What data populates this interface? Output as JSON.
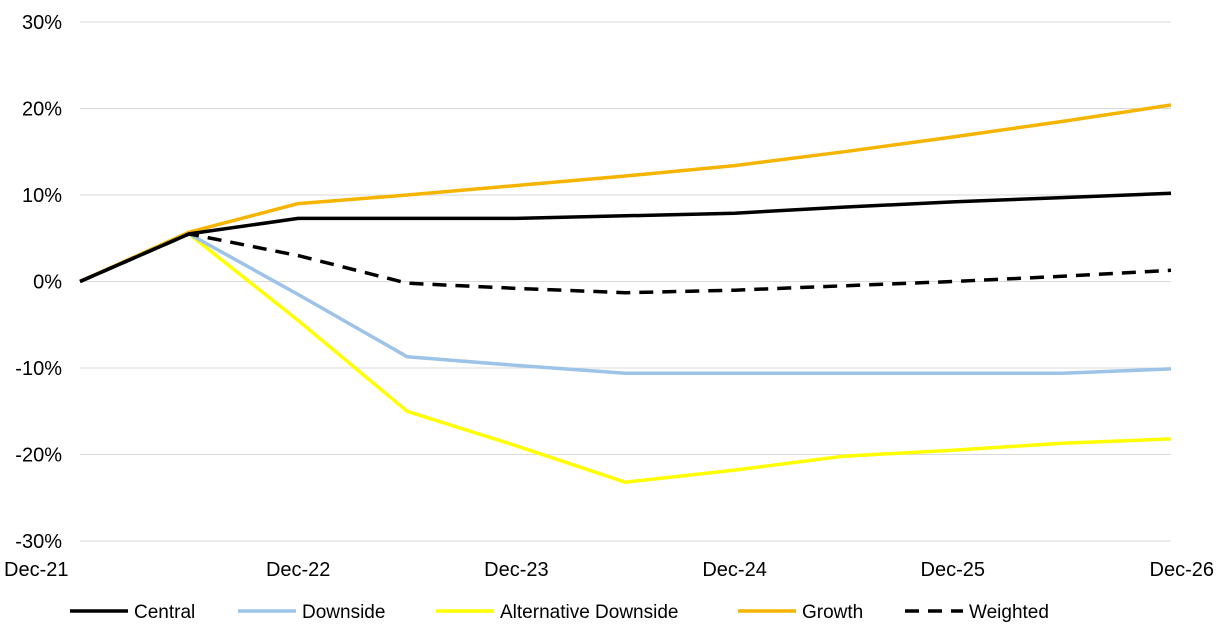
{
  "chart_data": {
    "type": "line",
    "x": [
      "Dec-21",
      "Jun-22",
      "Dec-22",
      "Jun-23",
      "Dec-23",
      "Jun-24",
      "Dec-24",
      "Jun-25",
      "Dec-25",
      "Jun-26",
      "Dec-26"
    ],
    "x_tick_labels": [
      "Dec-21",
      "Dec-22",
      "Dec-23",
      "Dec-24",
      "Dec-25",
      "Dec-26"
    ],
    "y_tick_labels": [
      "30%",
      "20%",
      "10%",
      "0%",
      "-10%",
      "-20%",
      "-30%"
    ],
    "ylim": [
      -30,
      30
    ],
    "y_unit": "%",
    "grid": "horizontal",
    "legend_position": "bottom",
    "series": [
      {
        "name": "Central",
        "color": "#000000",
        "dash": "solid",
        "values": [
          0,
          5.5,
          7.3,
          7.3,
          7.3,
          7.6,
          7.9,
          8.6,
          9.2,
          9.7,
          10.2
        ]
      },
      {
        "name": "Downside",
        "color": "#9DC3E6",
        "dash": "solid",
        "values": [
          0,
          5.5,
          -1.5,
          -8.7,
          -9.7,
          -10.6,
          -10.6,
          -10.6,
          -10.6,
          -10.6,
          -10.1
        ]
      },
      {
        "name": "Alternative Downside",
        "color": "#FFFF00",
        "dash": "solid",
        "values": [
          0,
          5.5,
          -4.5,
          -15,
          -19,
          -23.2,
          -21.8,
          -20.2,
          -19.5,
          -18.7,
          -18.2
        ]
      },
      {
        "name": "Growth",
        "color": "#F4B400",
        "dash": "solid",
        "values": [
          0,
          5.7,
          9,
          10,
          11.1,
          12.2,
          13.4,
          15,
          16.7,
          18.5,
          20.4
        ]
      },
      {
        "name": "Weighted",
        "color": "#000000",
        "dash": "dashed",
        "values": [
          0,
          5.5,
          3,
          -0.2,
          -0.8,
          -1.3,
          -1,
          -0.5,
          0,
          0.6,
          1.3
        ]
      }
    ]
  }
}
